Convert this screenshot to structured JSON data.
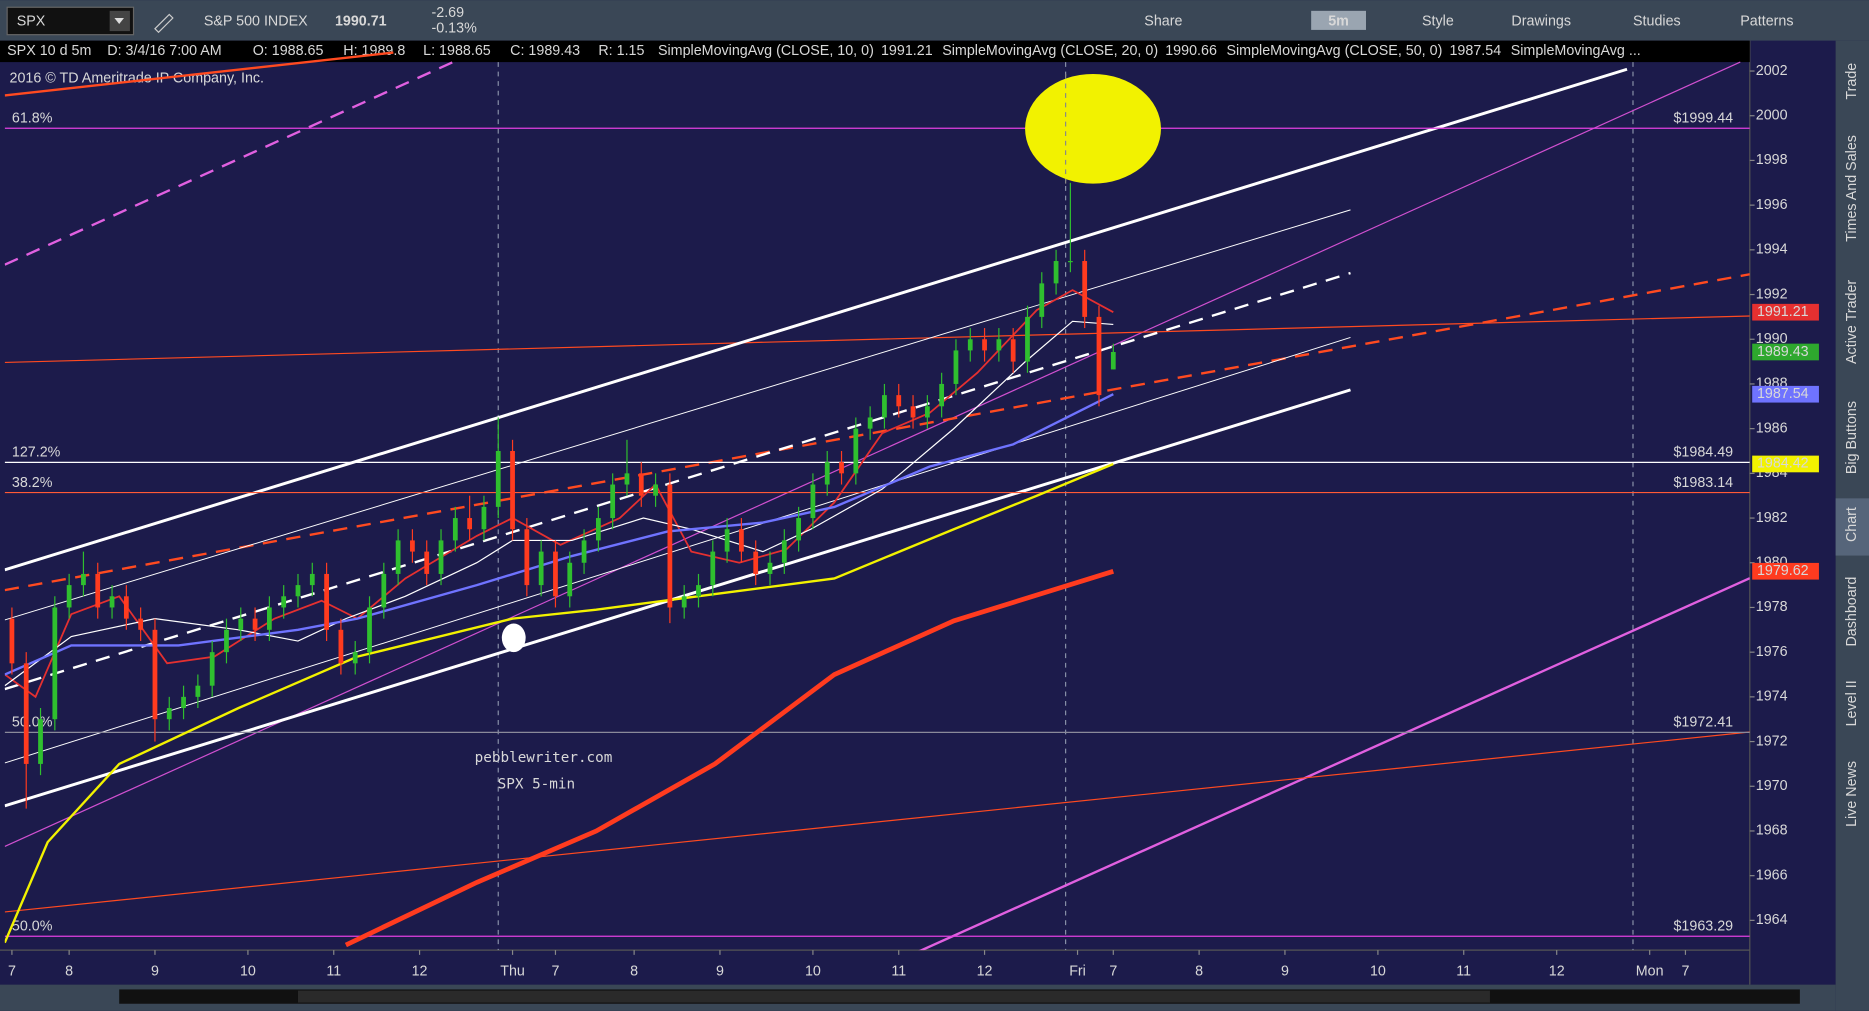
{
  "toolbar": {
    "symbol": "SPX",
    "description": "S&P 500 INDEX",
    "last": "1990.71",
    "change": "-2.69",
    "change_pct": "-0.13%",
    "buttons": [
      "Share",
      "5m",
      "Style",
      "Drawings",
      "Studies",
      "Patterns"
    ]
  },
  "info_bar": {
    "chart": "SPX 10 d 5m",
    "date": "D: 3/4/16 7:00 AM",
    "open": "O: 1988.65",
    "high": "H: 1989.8",
    "low": "L: 1988.65",
    "close": "C: 1989.43",
    "range": "R: 1.15"
  },
  "copyright": "2016 © TD Ameritrade IP Company, Inc.",
  "side_tabs": [
    "Trade",
    "Times And Sales",
    "Active Trader",
    "Big Buttons",
    "Chart",
    "Dashboard",
    "Level II",
    "Live News"
  ],
  "chart_data": {
    "type": "candlestick",
    "annotations": [
      "pebblewriter.com",
      "SPX 5-min"
    ],
    "xlim": [
      0,
      244
    ],
    "xticks": [
      {
        "value": 1,
        "label": "7"
      },
      {
        "value": 9,
        "label": "8"
      },
      {
        "value": 21,
        "label": "9"
      },
      {
        "value": 34,
        "label": "10"
      },
      {
        "value": 46,
        "label": "11"
      },
      {
        "value": 58,
        "label": "12"
      },
      {
        "value": 71,
        "label": "Thu"
      },
      {
        "value": 77,
        "label": "7"
      },
      {
        "value": 88,
        "label": "8"
      },
      {
        "value": 100,
        "label": "9"
      },
      {
        "value": 113,
        "label": "10"
      },
      {
        "value": 125,
        "label": "11"
      },
      {
        "value": 137,
        "label": "12"
      },
      {
        "value": 150,
        "label": "Fri"
      },
      {
        "value": 155,
        "label": "7"
      },
      {
        "value": 167,
        "label": "8"
      },
      {
        "value": 179,
        "label": "9"
      },
      {
        "value": 192,
        "label": "10"
      },
      {
        "value": 204,
        "label": "11"
      },
      {
        "value": 217,
        "label": "12"
      },
      {
        "value": 230,
        "label": "Mon"
      },
      {
        "value": 235,
        "label": "7"
      }
    ],
    "ylim": [
      1962.67,
      2003.36
    ],
    "yticks": [
      1964,
      1966,
      1968,
      1970,
      1972,
      1974,
      1976,
      1978,
      1980,
      1982,
      1984,
      1986,
      1988,
      1990,
      1992,
      1994,
      1996,
      1998,
      2000,
      2002
    ],
    "candles": {
      "up_color": "#2fbf2f",
      "down_color": "#ff3b1f",
      "badge_color": "#2ea82e",
      "x": [
        1,
        3,
        5,
        7,
        9,
        11,
        13,
        15,
        17,
        19,
        21,
        23,
        25,
        27,
        29,
        31,
        33,
        35,
        37,
        39,
        41,
        43,
        45,
        47,
        49,
        51,
        53,
        55,
        57,
        59,
        61,
        63,
        65,
        67,
        69,
        71,
        73,
        75,
        77,
        79,
        81,
        83,
        85,
        87,
        89,
        91,
        93,
        95,
        97,
        99,
        101,
        103,
        105,
        107,
        109,
        111,
        113,
        115,
        117,
        119,
        121,
        123,
        125,
        127,
        129,
        131,
        133,
        135,
        137,
        139,
        141,
        143,
        145,
        147,
        149,
        151,
        153,
        155
      ],
      "open": [
        1977.5,
        1975.5,
        1971,
        1973,
        1978,
        1979,
        1979.5,
        1978,
        1978.5,
        1977.5,
        1977,
        1973,
        1973.5,
        1974,
        1974.5,
        1976,
        1977,
        1977.5,
        1977,
        1978,
        1978.5,
        1979,
        1979.5,
        1977,
        1975.5,
        1976,
        1978,
        1979.5,
        1981,
        1980.5,
        1979.5,
        1981,
        1982,
        1981.5,
        1982.5,
        1985,
        1981.5,
        1979,
        1980.5,
        1978.5,
        1980,
        1981,
        1982,
        1983.5,
        1984,
        1983,
        1983.5,
        1978,
        1978.5,
        1979,
        1980.5,
        1981.5,
        1980.5,
        1979.5,
        1980,
        1981,
        1982,
        1983.5,
        1984.5,
        1984,
        1986,
        1986.5,
        1987.5,
        1987,
        1986.5,
        1987,
        1988,
        1989.5,
        1990,
        1989.5,
        1990,
        1989,
        1991,
        1992.5,
        1993.5,
        1993.5,
        1991,
        1988.65
      ],
      "high": [
        1978,
        1976,
        1973.5,
        1978.5,
        1979.5,
        1980.5,
        1980,
        1979,
        1979,
        1978,
        1977.5,
        1974,
        1974.5,
        1975,
        1976.5,
        1977.5,
        1978,
        1978,
        1978.5,
        1979,
        1979.5,
        1980,
        1980,
        1977.5,
        1976.5,
        1978.5,
        1980,
        1981.5,
        1981.5,
        1981,
        1981.5,
        1982.5,
        1983,
        1983,
        1986.5,
        1985.5,
        1982,
        1981,
        1981,
        1980.5,
        1981.5,
        1982.5,
        1984,
        1985.5,
        1984.5,
        1984,
        1984,
        1979,
        1979.5,
        1981,
        1982,
        1982,
        1981,
        1980.5,
        1981.5,
        1982.5,
        1984,
        1985,
        1985,
        1986.5,
        1987,
        1988,
        1988,
        1987.5,
        1987.5,
        1988.5,
        1990,
        1990.5,
        1990.5,
        1990.5,
        1990.5,
        1991.5,
        1993,
        1994,
        1997,
        1994,
        1991.5,
        1989.8
      ],
      "low": [
        1975,
        1969,
        1970.5,
        1972.5,
        1977.5,
        1978.5,
        1977.5,
        1977.5,
        1977,
        1976.5,
        1972,
        1972.5,
        1973,
        1973.5,
        1974,
        1975.5,
        1976.5,
        1976.5,
        1976.5,
        1977.5,
        1978,
        1978.5,
        1976.5,
        1975,
        1975,
        1975.5,
        1977.5,
        1979,
        1980,
        1979,
        1979,
        1980.5,
        1981,
        1981,
        1982,
        1981,
        1978.5,
        1978.5,
        1978,
        1978,
        1979.5,
        1980.5,
        1981.5,
        1983,
        1982.5,
        1982.5,
        1977.3,
        1977.5,
        1978,
        1978.5,
        1980,
        1980,
        1979,
        1979,
        1979.5,
        1980.5,
        1981.5,
        1983,
        1983.5,
        1983.5,
        1985.5,
        1986,
        1986.5,
        1986,
        1986,
        1986.5,
        1987.5,
        1989,
        1989,
        1989,
        1988.5,
        1988.5,
        1990.5,
        1992,
        1993,
        1990.5,
        1987,
        1988.65
      ],
      "close": [
        1975.5,
        1971,
        1973,
        1978,
        1979,
        1979.5,
        1978,
        1978.5,
        1977.5,
        1977,
        1973,
        1973.5,
        1974,
        1974.5,
        1976,
        1977,
        1977.5,
        1977,
        1978,
        1978.5,
        1979,
        1979.5,
        1977,
        1975.5,
        1976,
        1978,
        1979.5,
        1981,
        1980.5,
        1979.5,
        1981,
        1982,
        1981.5,
        1982.5,
        1985,
        1981.5,
        1979,
        1980.5,
        1978.5,
        1980,
        1981,
        1982,
        1983.5,
        1984,
        1983,
        1983.5,
        1978,
        1978.5,
        1979,
        1980.5,
        1981.5,
        1980.5,
        1979.5,
        1980,
        1981,
        1982,
        1983.5,
        1984.5,
        1984,
        1986,
        1986.5,
        1987.5,
        1987,
        1986.5,
        1987,
        1988,
        1989.5,
        1990,
        1989.5,
        1990,
        1989,
        1991,
        1992.5,
        1993.5,
        1993.5,
        1991,
        1987.5,
        1989.43
      ]
    },
    "series": [
      {
        "name": "SimpleMovingAvg (CLOSE, 10, 0)",
        "color": "#e53030",
        "width": 1.5,
        "badge": true,
        "x": [
          0,
          4.3,
          9.3,
          16,
          22.7,
          29.3,
          37.7,
          44.3,
          49.3,
          56,
          66,
          71,
          77.7,
          86,
          91,
          96,
          102.7,
          109.3,
          116,
          122.7,
          129.3,
          136,
          144.3,
          149.3,
          155
        ],
        "values": [
          1975,
          1974,
          1977.7,
          1978.5,
          1975.5,
          1975.8,
          1977.5,
          1978.3,
          1977.5,
          1979.3,
          1981.2,
          1982,
          1980.8,
          1982,
          1983.5,
          1980.5,
          1980,
          1980.6,
          1982.7,
          1985.8,
          1986.7,
          1988.5,
          1991.3,
          1992.2,
          1991.21
        ]
      },
      {
        "name": "SimpleMovingAvg (CLOSE, 20, 0)",
        "color": "#ffffff",
        "width": 1,
        "badge": false,
        "x": [
          0,
          9.3,
          21,
          32.7,
          41,
          47.7,
          56,
          66,
          71,
          79.3,
          89.3,
          96,
          106,
          112.7,
          122.7,
          132.7,
          142.7,
          149.3,
          155
        ],
        "values": [
          1974.5,
          1976.7,
          1977.5,
          1977,
          1976.5,
          1977.5,
          1978.5,
          1980,
          1981,
          1981,
          1982,
          1981.5,
          1980.5,
          1981.5,
          1983.3,
          1986,
          1989,
          1990.8,
          1990.66
        ]
      },
      {
        "name": "SimpleMovingAvg (CLOSE, 50, 0)",
        "color": "#6f73ff",
        "width": 2,
        "badge": true,
        "x": [
          0,
          9.3,
          24.3,
          41,
          49.3,
          66,
          79.3,
          92.7,
          106,
          116,
          129.3,
          141,
          155
        ],
        "values": [
          1975,
          1976.3,
          1976.3,
          1977,
          1977.5,
          1979,
          1980.3,
          1981.4,
          1981.8,
          1982.5,
          1984.3,
          1985.3,
          1987.54
        ]
      },
      {
        "name": "SimpleMovingAvg ...",
        "color": "#f2f200",
        "width": 2,
        "badge": true,
        "x": [
          0,
          6,
          16,
          32.7,
          49.3,
          71,
          82.7,
          99.3,
          116,
          132.7,
          144.3,
          155
        ],
        "values": [
          1963,
          1967.5,
          1971,
          1973.5,
          1975.8,
          1977.5,
          1977.9,
          1978.6,
          1979.3,
          1981.5,
          1983,
          1984.42
        ]
      },
      {
        "color": "#ff3b1f",
        "width": 4,
        "badge": true,
        "x": [
          47.7,
          66,
          82.7,
          99.3,
          116,
          132.7,
          155
        ],
        "values": [
          1962.9,
          1965.7,
          1968,
          1971,
          1975,
          1977.4,
          1979.62
        ]
      }
    ],
    "levels": [
      {
        "ratio": "61.8%",
        "value": 1999.44,
        "value_label": "$1999.44",
        "color": "#e040e0"
      },
      {
        "ratio": "127.2%",
        "value": 1984.49,
        "value_label": "$1984.49",
        "color": "#ffffff"
      },
      {
        "ratio": "38.2%",
        "value": 1983.14,
        "value_label": "$1983.14",
        "color": "#ff5a36"
      },
      {
        "ratio": "50.0%",
        "value": 1972.41,
        "value_label": "$1972.41",
        "color": "#8a8a9a"
      },
      {
        "ratio": "50.0%",
        "value": 1963.29,
        "value_label": "$1963.29",
        "color": "#e040e0"
      }
    ]
  }
}
